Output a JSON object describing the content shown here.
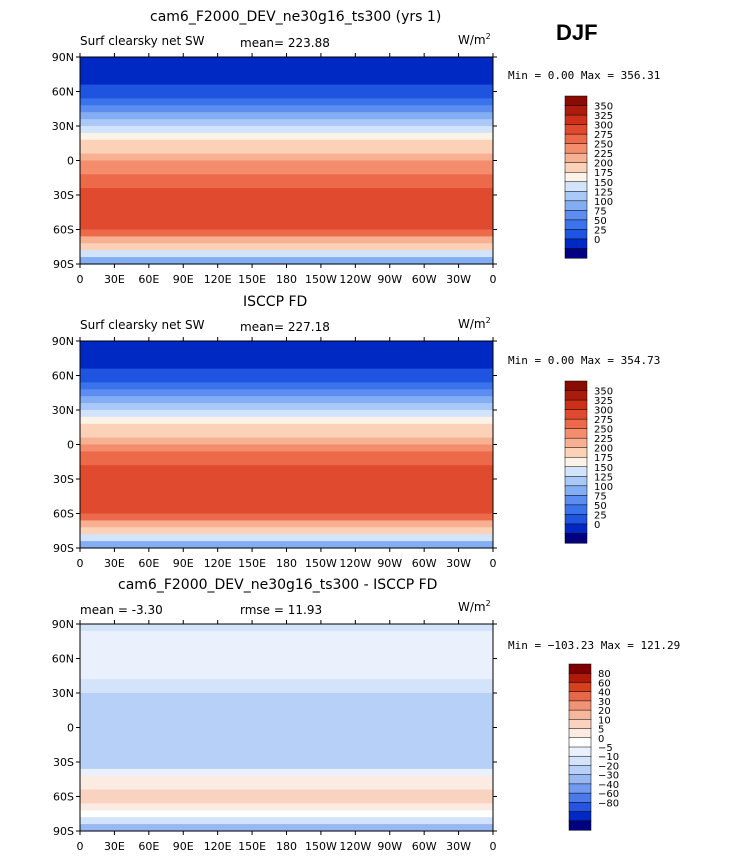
{
  "season": "DJF",
  "colors": {
    "full_scale": [
      "#000080",
      "#0029c4",
      "#1f54e0",
      "#3b73ec",
      "#5b8ef0",
      "#84aef4",
      "#aac9f8",
      "#d2e4fb",
      "#fbf2e8",
      "#fbd2b8",
      "#f8b092",
      "#f38d6c",
      "#ec6a4a",
      "#e04a2e",
      "#cc3019",
      "#ac1c0c",
      "#8a0c00"
    ],
    "diff_scale": [
      "#000080",
      "#0029c4",
      "#2454e0",
      "#4a7ae8",
      "#729bef",
      "#97b8f3",
      "#b7d0f7",
      "#d3e3fa",
      "#eaf1fc",
      "#ffffff",
      "#fcebe2",
      "#f9d3c0",
      "#f6b79c",
      "#f09275",
      "#e76849",
      "#d5401f",
      "#b1190b",
      "#7e0000"
    ]
  },
  "panels": [
    {
      "title": "cam6_F2000_DEV_ne30g16_ts300 (yrs 1)",
      "left_label": "Surf clearsky net SW",
      "center_label": "mean= 223.88",
      "units": "W/m",
      "units_sup": "2",
      "minmax": "Min =    0.00 Max = 356.31",
      "colorbar_labels": [
        "350",
        "325",
        "300",
        "275",
        "250",
        "225",
        "200",
        "175",
        "150",
        "125",
        "100",
        "75",
        "50",
        "25",
        "0"
      ]
    },
    {
      "title": "ISCCP FD",
      "left_label": "Surf clearsky net SW",
      "center_label": "mean= 227.18",
      "units": "W/m",
      "units_sup": "2",
      "minmax": "Min =    0.00 Max = 354.73",
      "colorbar_labels": [
        "350",
        "325",
        "300",
        "275",
        "250",
        "225",
        "200",
        "175",
        "150",
        "125",
        "100",
        "75",
        "50",
        "25",
        "0"
      ]
    },
    {
      "title": "cam6_F2000_DEV_ne30g16_ts300 - ISCCP FD",
      "left_label": "mean =  -3.30",
      "center_label": "rmse =  11.93",
      "units": "W/m",
      "units_sup": "2",
      "minmax": "Min = −103.23 Max = 121.29",
      "colorbar_labels": [
        "80",
        "60",
        "40",
        "30",
        "20",
        "10",
        "5",
        "0",
        "−5",
        "−10",
        "−20",
        "−30",
        "−40",
        "−60",
        "−80"
      ]
    }
  ],
  "axes": {
    "lat_ticks": [
      "90N",
      "60N",
      "30N",
      "0",
      "30S",
      "60S",
      "90S"
    ],
    "lon_ticks": [
      "0",
      "30E",
      "60E",
      "90E",
      "120E",
      "150E",
      "180",
      "150W",
      "120W",
      "90W",
      "60W",
      "30W",
      "0"
    ]
  },
  "chart_data": [
    {
      "type": "heatmap",
      "title": "cam6_F2000_DEV_ne30g16_ts300 (yrs 1)",
      "variable": "Surf clearsky net SW",
      "units": "W/m2",
      "mean": 223.88,
      "min": 0.0,
      "max": 356.31,
      "colorbar_levels": [
        0,
        25,
        50,
        75,
        100,
        125,
        150,
        175,
        200,
        225,
        250,
        275,
        300,
        325,
        350
      ],
      "zonal_profile": {
        "lat": [
          90,
          60,
          30,
          0,
          -30,
          -60,
          -90
        ],
        "values": [
          0,
          30,
          150,
          250,
          320,
          310,
          90
        ]
      }
    },
    {
      "type": "heatmap",
      "title": "ISCCP FD",
      "variable": "Surf clearsky net SW",
      "units": "W/m2",
      "mean": 227.18,
      "min": 0.0,
      "max": 354.73,
      "colorbar_levels": [
        0,
        25,
        50,
        75,
        100,
        125,
        150,
        175,
        200,
        225,
        250,
        275,
        300,
        325,
        350
      ],
      "zonal_profile": {
        "lat": [
          90,
          60,
          30,
          0,
          -30,
          -60,
          -90
        ],
        "values": [
          0,
          30,
          140,
          260,
          325,
          310,
          100
        ]
      }
    },
    {
      "type": "heatmap",
      "title": "cam6_F2000_DEV_ne30g16_ts300 - ISCCP FD",
      "variable": "Surf clearsky net SW difference",
      "units": "W/m2",
      "mean": -3.3,
      "rmse": 11.93,
      "min": -103.23,
      "max": 121.29,
      "colorbar_levels": [
        -80,
        -60,
        -40,
        -30,
        -20,
        -10,
        -5,
        0,
        5,
        10,
        20,
        30,
        40,
        60,
        80
      ],
      "zonal_profile": {
        "lat": [
          90,
          60,
          30,
          0,
          -30,
          -60,
          -90
        ],
        "values": [
          -2,
          5,
          -5,
          -8,
          -10,
          30,
          -15
        ]
      }
    }
  ]
}
